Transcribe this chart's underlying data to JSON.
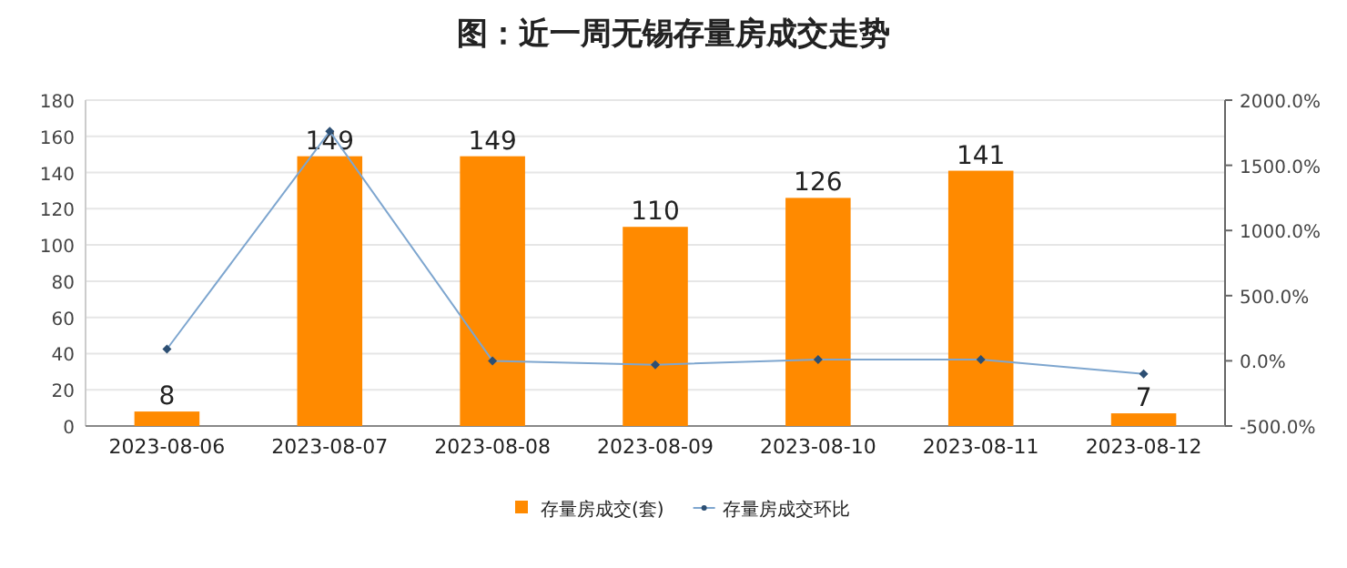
{
  "chart_data": {
    "type": "bar",
    "title": "图：近一周无锡存量房成交走势",
    "categories": [
      "2023-08-06",
      "2023-08-07",
      "2023-08-08",
      "2023-08-09",
      "2023-08-10",
      "2023-08-11",
      "2023-08-12"
    ],
    "series": [
      {
        "name": "存量房成交(套)",
        "color": "#ff8a00",
        "values": [
          8,
          149,
          149,
          110,
          126,
          141,
          7
        ],
        "value_labels": [
          "8",
          "149",
          "149",
          "110",
          "126",
          "141",
          "7"
        ]
      },
      {
        "name": "存量房成交环比",
        "type": "line",
        "axis": "y2",
        "color": "#7ea6cf",
        "marker": "diamond",
        "values": [
          90,
          1760,
          0,
          -30,
          10,
          10,
          -100
        ]
      }
    ],
    "ylim": [
      0,
      180
    ],
    "yticks": [
      0,
      20,
      40,
      60,
      80,
      100,
      120,
      140,
      160,
      180
    ],
    "y2lim": [
      -500,
      2000
    ],
    "y2ticks": [
      {
        "value": -500,
        "label": "-500.0%"
      },
      {
        "value": 0,
        "label": "0.0%"
      },
      {
        "value": 500,
        "label": "500.0%"
      },
      {
        "value": 1000,
        "label": "1000.0%"
      },
      {
        "value": 1500,
        "label": "1500.0%"
      },
      {
        "value": 2000,
        "label": "2000.0%"
      }
    ],
    "grid": "y",
    "legend": "bottom"
  }
}
